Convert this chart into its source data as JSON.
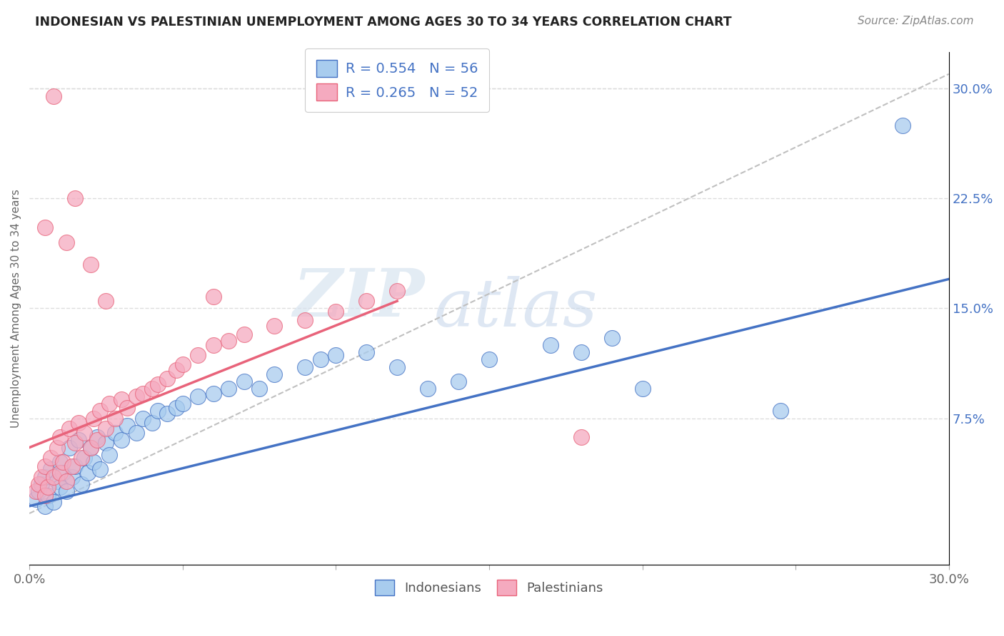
{
  "title": "INDONESIAN VS PALESTINIAN UNEMPLOYMENT AMONG AGES 30 TO 34 YEARS CORRELATION CHART",
  "source": "Source: ZipAtlas.com",
  "ylabel": "Unemployment Among Ages 30 to 34 years",
  "xlim": [
    0.0,
    0.3
  ],
  "ylim": [
    -0.025,
    0.325
  ],
  "xticks": [
    0.0,
    0.05,
    0.1,
    0.15,
    0.2,
    0.25,
    0.3
  ],
  "xticklabels": [
    "0.0%",
    "",
    "",
    "",
    "",
    "",
    "30.0%"
  ],
  "yticks_right": [
    0.075,
    0.15,
    0.225,
    0.3
  ],
  "ytick_right_labels": [
    "7.5%",
    "15.0%",
    "22.5%",
    "30.0%"
  ],
  "legend_r1": "R = 0.554   N = 56",
  "legend_r2": "R = 0.265   N = 52",
  "legend_label1": "Indonesians",
  "legend_label2": "Palestinians",
  "blue_color": "#A8CCEE",
  "pink_color": "#F5AABF",
  "blue_line_color": "#4472C4",
  "pink_line_color": "#E8637A",
  "R_indonesian": 0.554,
  "N_indonesian": 56,
  "R_palestinian": 0.265,
  "N_palestinian": 52,
  "indonesian_x": [
    0.002,
    0.003,
    0.004,
    0.005,
    0.005,
    0.006,
    0.007,
    0.008,
    0.009,
    0.01,
    0.01,
    0.011,
    0.012,
    0.013,
    0.014,
    0.015,
    0.016,
    0.017,
    0.018,
    0.019,
    0.02,
    0.021,
    0.022,
    0.023,
    0.025,
    0.026,
    0.028,
    0.03,
    0.032,
    0.035,
    0.037,
    0.04,
    0.042,
    0.045,
    0.048,
    0.05,
    0.055,
    0.06,
    0.065,
    0.07,
    0.075,
    0.08,
    0.09,
    0.095,
    0.1,
    0.11,
    0.12,
    0.13,
    0.14,
    0.15,
    0.17,
    0.18,
    0.19,
    0.2,
    0.245,
    0.285
  ],
  "indonesian_y": [
    0.02,
    0.025,
    0.03,
    0.015,
    0.035,
    0.022,
    0.04,
    0.018,
    0.032,
    0.028,
    0.045,
    0.038,
    0.025,
    0.055,
    0.035,
    0.042,
    0.06,
    0.03,
    0.048,
    0.038,
    0.055,
    0.045,
    0.062,
    0.04,
    0.058,
    0.05,
    0.065,
    0.06,
    0.07,
    0.065,
    0.075,
    0.072,
    0.08,
    0.078,
    0.082,
    0.085,
    0.09,
    0.092,
    0.095,
    0.1,
    0.095,
    0.105,
    0.11,
    0.115,
    0.118,
    0.12,
    0.11,
    0.095,
    0.1,
    0.115,
    0.125,
    0.12,
    0.13,
    0.095,
    0.08,
    0.275
  ],
  "palestinian_x": [
    0.002,
    0.003,
    0.004,
    0.005,
    0.005,
    0.006,
    0.007,
    0.008,
    0.009,
    0.01,
    0.01,
    0.011,
    0.012,
    0.013,
    0.014,
    0.015,
    0.016,
    0.017,
    0.018,
    0.02,
    0.021,
    0.022,
    0.023,
    0.025,
    0.026,
    0.028,
    0.03,
    0.032,
    0.035,
    0.037,
    0.04,
    0.042,
    0.045,
    0.048,
    0.05,
    0.055,
    0.06,
    0.065,
    0.07,
    0.08,
    0.09,
    0.1,
    0.11,
    0.12,
    0.005,
    0.008,
    0.012,
    0.015,
    0.02,
    0.025,
    0.06,
    0.18
  ],
  "palestinian_y": [
    0.025,
    0.03,
    0.035,
    0.022,
    0.042,
    0.028,
    0.048,
    0.035,
    0.055,
    0.038,
    0.062,
    0.045,
    0.032,
    0.068,
    0.042,
    0.058,
    0.072,
    0.048,
    0.065,
    0.055,
    0.075,
    0.06,
    0.08,
    0.068,
    0.085,
    0.075,
    0.088,
    0.082,
    0.09,
    0.092,
    0.095,
    0.098,
    0.102,
    0.108,
    0.112,
    0.118,
    0.125,
    0.128,
    0.132,
    0.138,
    0.142,
    0.148,
    0.155,
    0.162,
    0.205,
    0.295,
    0.195,
    0.225,
    0.18,
    0.155,
    0.158,
    0.062
  ],
  "blue_trend": [
    0.0,
    0.3
  ],
  "blue_trend_y": [
    0.015,
    0.17
  ],
  "pink_trend": [
    0.0,
    0.12
  ],
  "pink_trend_y": [
    0.055,
    0.155
  ],
  "dash_trend": [
    0.0,
    0.3
  ],
  "dash_trend_y": [
    0.01,
    0.31
  ],
  "watermark_zip": "ZIP",
  "watermark_atlas": "atlas",
  "background_color": "#FFFFFF",
  "grid_color": "#DDDDDD"
}
